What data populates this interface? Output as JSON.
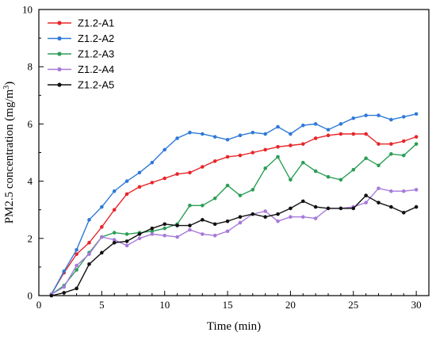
{
  "chart_data": {
    "type": "line",
    "xlabel": "Time (min)",
    "ylabel_parts": {
      "base": "PM2.5 concentration (mg/m",
      "sup": "3",
      "close": ")"
    },
    "xlim": [
      0,
      31
    ],
    "ylim": [
      0,
      10
    ],
    "x_ticks": [
      0,
      5,
      10,
      15,
      20,
      25,
      30
    ],
    "y_ticks": [
      0,
      2,
      4,
      6,
      8,
      10
    ],
    "legend_position": "top-left",
    "x": [
      1,
      2,
      3,
      4,
      5,
      6,
      7,
      8,
      9,
      10,
      11,
      12,
      13,
      14,
      15,
      16,
      17,
      18,
      19,
      20,
      21,
      22,
      23,
      24,
      25,
      26,
      27,
      28,
      29,
      30
    ],
    "series": [
      {
        "name": "Z1.2-A1",
        "color": "#e8262a",
        "values": [
          0.05,
          0.8,
          1.45,
          1.85,
          2.4,
          3.0,
          3.55,
          3.8,
          3.95,
          4.1,
          4.25,
          4.3,
          4.5,
          4.7,
          4.85,
          4.9,
          5.0,
          5.1,
          5.2,
          5.25,
          5.3,
          5.5,
          5.6,
          5.65,
          5.65,
          5.65,
          5.3,
          5.3,
          5.4,
          5.55
        ]
      },
      {
        "name": "Z1.2-A2",
        "color": "#2f7ad8",
        "values": [
          0.05,
          0.85,
          1.6,
          2.65,
          3.1,
          3.65,
          4.0,
          4.3,
          4.65,
          5.1,
          5.5,
          5.7,
          5.65,
          5.55,
          5.45,
          5.6,
          5.7,
          5.65,
          5.9,
          5.65,
          5.95,
          6.0,
          5.8,
          6.0,
          6.2,
          6.3,
          6.3,
          6.15,
          6.25,
          6.35
        ]
      },
      {
        "name": "Z1.2-A3",
        "color": "#2c9e57",
        "values": [
          0.05,
          0.35,
          0.9,
          1.5,
          2.05,
          2.2,
          2.15,
          2.2,
          2.25,
          2.35,
          2.5,
          3.15,
          3.15,
          3.4,
          3.85,
          3.5,
          3.7,
          4.45,
          4.85,
          4.05,
          4.65,
          4.35,
          4.15,
          4.05,
          4.4,
          4.8,
          4.55,
          4.95,
          4.9,
          5.3
        ]
      },
      {
        "name": "Z1.2-A4",
        "color": "#a77ad9",
        "values": [
          0.05,
          0.3,
          1.05,
          1.45,
          2.05,
          1.95,
          1.75,
          2.0,
          2.15,
          2.1,
          2.05,
          2.3,
          2.15,
          2.1,
          2.25,
          2.55,
          2.85,
          2.95,
          2.6,
          2.75,
          2.75,
          2.7,
          3.05,
          3.05,
          3.1,
          3.25,
          3.75,
          3.65,
          3.65,
          3.7
        ]
      },
      {
        "name": "Z1.2-A5",
        "color": "#111111",
        "values": [
          0.0,
          0.1,
          0.25,
          1.1,
          1.5,
          1.85,
          1.9,
          2.15,
          2.35,
          2.5,
          2.45,
          2.45,
          2.65,
          2.5,
          2.6,
          2.75,
          2.85,
          2.75,
          2.85,
          3.05,
          3.3,
          3.1,
          3.05,
          3.05,
          3.05,
          3.5,
          3.25,
          3.1,
          2.9,
          3.1
        ]
      }
    ]
  }
}
